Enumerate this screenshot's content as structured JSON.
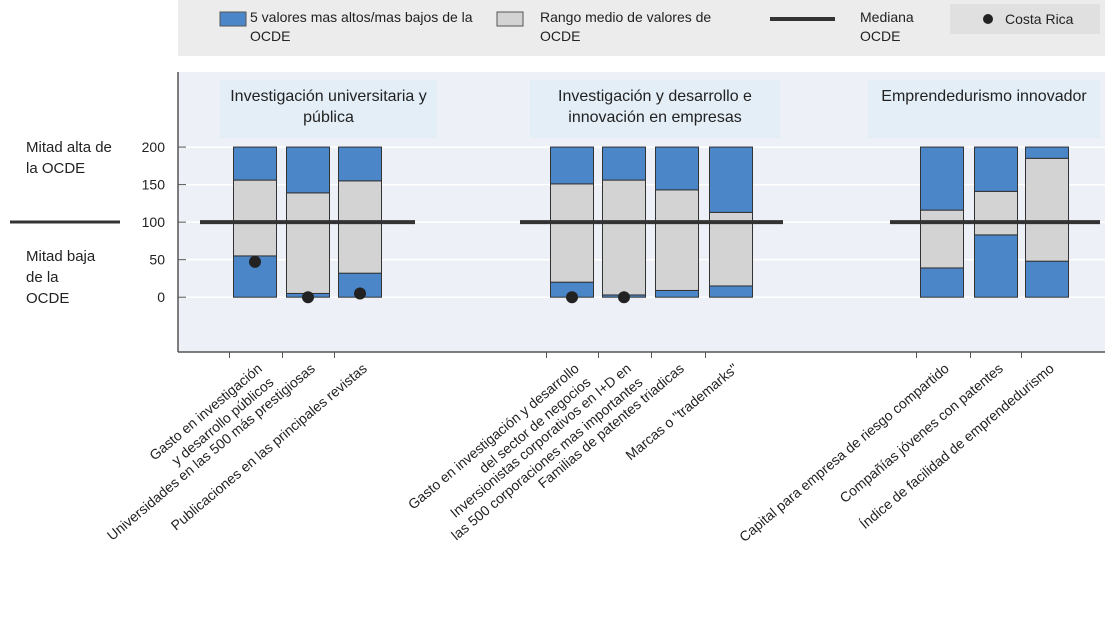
{
  "chart_data": {
    "type": "range_bar",
    "group_titles": [
      "Investigación universitaria y pública",
      "Investigación y desarrollo e innovación en empresas",
      "Emprendedurismo innovador"
    ],
    "categories": [
      [
        "Gasto en investigación",
        "y desarrollo públicos"
      ],
      [
        "Universidades en las 500 más prestigiosas"
      ],
      [
        "Publicaciones en las principales revistas"
      ],
      [
        "Gasto en investigación y desarrollo",
        "del sector de negocios"
      ],
      [
        "Inversionistas corporativos en I+D en",
        "las 500 corporaciones mas importantes"
      ],
      [
        "Familias de patentes triadicas"
      ],
      [
        "Marcas o \"trademarks\""
      ],
      [
        "Capital para empresa de riesgo compartido"
      ],
      [
        "Compañías jóvenes con patentes"
      ],
      [
        "Índice de facilidad de emprendedurismo"
      ]
    ],
    "series": [
      {
        "name": "5 valores mas altos/mas bajos de la OCDE",
        "color": "#4a86c8",
        "values": [
          55,
          5,
          32,
          20,
          3,
          9,
          15,
          39,
          83,
          48
        ]
      },
      {
        "name": "Rango medio de valores de OCDE",
        "color": "#d3d3d3",
        "values": [
          101,
          134,
          123,
          131,
          153,
          134,
          98,
          77,
          58,
          137
        ]
      },
      {
        "color": "#4a86c8",
        "values": [
          44,
          61,
          45,
          49,
          44,
          57,
          87,
          84,
          59,
          15
        ]
      }
    ],
    "median": {
      "name": "Mediana OCDE",
      "value": 100
    },
    "costa_rica": {
      "name": "Costa Rica",
      "color": "#222",
      "values": [
        47,
        0,
        5,
        0,
        0,
        null,
        null,
        null,
        null,
        null
      ]
    },
    "upper_half_label": "Mitad alta de la OCDE",
    "lower_half_label": "Mitad baja de la OCDE",
    "ylim": [
      -73,
      300
    ],
    "yticks": [
      0,
      50,
      100,
      150,
      200
    ],
    "grid": true
  }
}
